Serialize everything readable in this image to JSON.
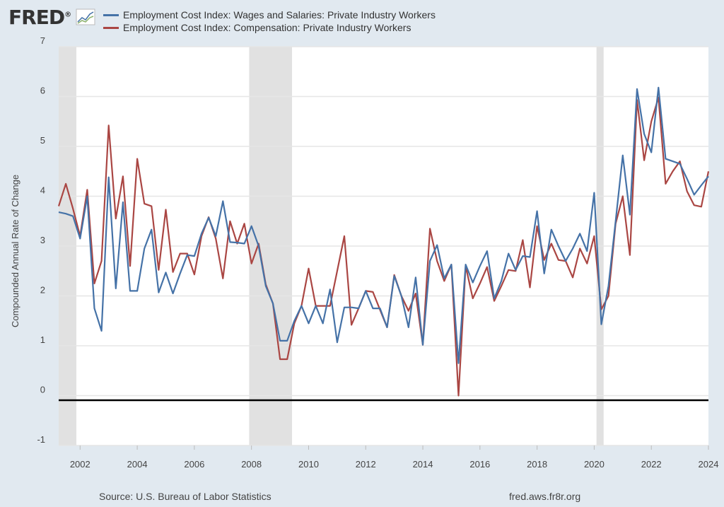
{
  "header": {
    "logo": "FRED",
    "logo_mark": "®"
  },
  "footer": {
    "source": "Source: U.S. Bureau of Labor Statistics",
    "site": "fred.aws.fr8r.org"
  },
  "chart_data": {
    "type": "line",
    "title": "",
    "xlabel": "",
    "ylabel": "Compounded Annual Rate of Change",
    "ylim": [
      -1,
      7
    ],
    "xlim": [
      2001.25,
      2024.0
    ],
    "yticks": [
      "-1",
      "0",
      "1",
      "2",
      "3",
      "4",
      "5",
      "6",
      "7"
    ],
    "xticks": [
      "2002",
      "2004",
      "2006",
      "2008",
      "2010",
      "2012",
      "2014",
      "2016",
      "2018",
      "2020",
      "2022",
      "2024"
    ],
    "grid": true,
    "legend_position": "top",
    "frequency": "quarterly",
    "start": "2001 Q2",
    "recessions": [
      [
        2001.25,
        2001.87
      ],
      [
        2007.92,
        2009.42
      ],
      [
        2020.08,
        2020.33
      ]
    ],
    "series": [
      {
        "name": "Employment Cost Index: Wages and Salaries: Private Industry Workers",
        "color": "#4572a7",
        "values": [
          3.68,
          3.65,
          3.6,
          3.15,
          4.0,
          1.75,
          1.3,
          4.38,
          2.15,
          3.88,
          2.1,
          2.1,
          2.95,
          3.33,
          2.07,
          2.47,
          2.05,
          2.45,
          2.82,
          2.8,
          3.25,
          3.57,
          3.2,
          3.9,
          3.08,
          3.07,
          3.05,
          3.4,
          3.0,
          2.2,
          1.85,
          1.1,
          1.1,
          1.5,
          1.8,
          1.45,
          1.8,
          1.45,
          2.13,
          1.07,
          1.77,
          1.77,
          1.75,
          2.1,
          1.75,
          1.75,
          1.37,
          2.4,
          2.0,
          1.37,
          2.37,
          1.02,
          2.7,
          3.02,
          2.35,
          2.63,
          0.65,
          2.63,
          2.27,
          2.6,
          2.9,
          1.95,
          2.3,
          2.85,
          2.52,
          2.8,
          2.78,
          3.7,
          2.45,
          3.33,
          3.0,
          2.7,
          2.95,
          3.25,
          2.9,
          4.07,
          1.43,
          2.2,
          3.5,
          4.82,
          3.63,
          6.15,
          5.25,
          4.88,
          6.18,
          4.75,
          4.7,
          4.65,
          4.35,
          4.03,
          4.22,
          4.4
        ]
      },
      {
        "name": "Employment Cost Index: Compensation: Private Industry Workers",
        "color": "#aa4643",
        "values": [
          3.8,
          4.25,
          3.75,
          3.2,
          4.13,
          2.25,
          2.7,
          5.42,
          3.55,
          4.4,
          2.6,
          4.75,
          3.85,
          3.8,
          2.52,
          3.73,
          2.48,
          2.85,
          2.85,
          2.43,
          3.2,
          3.58,
          3.15,
          2.35,
          3.5,
          3.05,
          3.45,
          2.65,
          3.05,
          2.23,
          1.85,
          0.73,
          0.73,
          1.45,
          1.8,
          2.55,
          1.8,
          1.8,
          1.8,
          2.5,
          3.2,
          1.42,
          1.75,
          2.1,
          2.08,
          1.72,
          1.37,
          2.42,
          2.0,
          1.7,
          2.05,
          1.02,
          3.35,
          2.7,
          2.3,
          2.63,
          0.0,
          2.6,
          1.95,
          2.25,
          2.58,
          1.9,
          2.2,
          2.52,
          2.5,
          3.12,
          2.17,
          3.4,
          2.72,
          3.05,
          2.72,
          2.7,
          2.37,
          2.95,
          2.65,
          3.2,
          1.73,
          2.0,
          3.45,
          4.0,
          2.82,
          5.93,
          4.72,
          5.5,
          5.98,
          4.25,
          4.5,
          4.7,
          4.1,
          3.82,
          3.79,
          4.5
        ]
      }
    ]
  }
}
